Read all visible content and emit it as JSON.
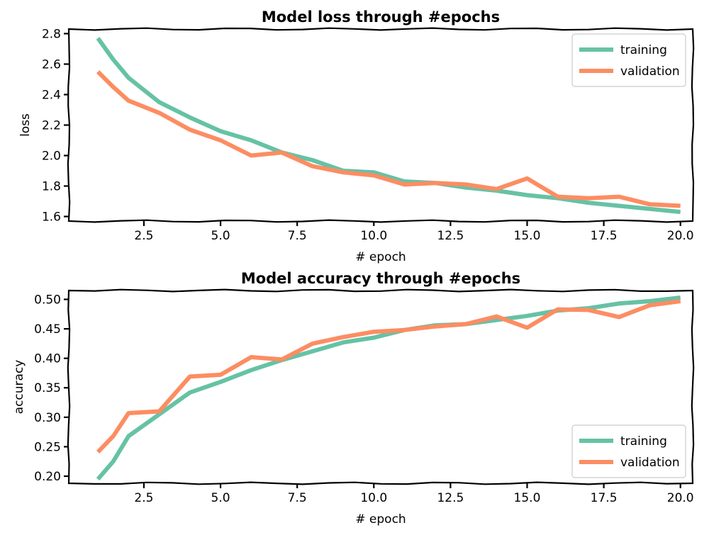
{
  "chart_data": [
    {
      "type": "line",
      "title": "Model loss through #epochs",
      "xlabel": "# epoch",
      "ylabel": "loss",
      "xlim": [
        0.05,
        20.4
      ],
      "ylim": [
        1.57,
        2.83
      ],
      "xticks": [
        2.5,
        5.0,
        7.5,
        10.0,
        12.5,
        15.0,
        17.5,
        20.0
      ],
      "xtick_labels": [
        "2.5",
        "5.0",
        "7.5",
        "10.0",
        "12.5",
        "15.0",
        "17.5",
        "20.0"
      ],
      "yticks": [
        1.6,
        1.8,
        2.0,
        2.2,
        2.4,
        2.6,
        2.8
      ],
      "ytick_labels": [
        "1.6",
        "1.8",
        "2.0",
        "2.2",
        "2.4",
        "2.6",
        "2.8"
      ],
      "grid": false,
      "legend_position": "top-right",
      "x": [
        1,
        1.5,
        2,
        3,
        4,
        5,
        6,
        7,
        8,
        9,
        10,
        11,
        12,
        13,
        14,
        15,
        16,
        17,
        18,
        19,
        20
      ],
      "series": [
        {
          "name": "training",
          "color": "#66c2a5",
          "values": [
            2.77,
            2.63,
            2.51,
            2.35,
            2.25,
            2.16,
            2.1,
            2.02,
            1.97,
            1.9,
            1.89,
            1.83,
            1.82,
            1.79,
            1.77,
            1.74,
            1.72,
            1.69,
            1.67,
            1.65,
            1.63
          ]
        },
        {
          "name": "validation",
          "color": "#fc8d62",
          "values": [
            2.55,
            2.45,
            2.36,
            2.28,
            2.17,
            2.1,
            2.0,
            2.02,
            1.93,
            1.89,
            1.87,
            1.81,
            1.82,
            1.81,
            1.78,
            1.85,
            1.73,
            1.72,
            1.73,
            1.68,
            1.67
          ]
        }
      ]
    },
    {
      "type": "line",
      "title": "Model accuracy through #epochs",
      "xlabel": "# epoch",
      "ylabel": "accuracy",
      "xlim": [
        0.05,
        20.4
      ],
      "ylim": [
        0.188,
        0.515
      ],
      "xticks": [
        2.5,
        5.0,
        7.5,
        10.0,
        12.5,
        15.0,
        17.5,
        20.0
      ],
      "xtick_labels": [
        "2.5",
        "5.0",
        "7.5",
        "10.0",
        "12.5",
        "15.0",
        "17.5",
        "20.0"
      ],
      "yticks": [
        0.2,
        0.25,
        0.3,
        0.35,
        0.4,
        0.45,
        0.5
      ],
      "ytick_labels": [
        "0.20",
        "0.25",
        "0.30",
        "0.35",
        "0.40",
        "0.45",
        "0.50"
      ],
      "grid": false,
      "legend_position": "bottom-right",
      "x": [
        1,
        1.5,
        2,
        3,
        4,
        5,
        6,
        7,
        8,
        9,
        10,
        11,
        12,
        13,
        14,
        15,
        16,
        17,
        18,
        19,
        20
      ],
      "series": [
        {
          "name": "training",
          "color": "#66c2a5",
          "values": [
            0.195,
            0.225,
            0.268,
            0.305,
            0.342,
            0.36,
            0.38,
            0.397,
            0.412,
            0.427,
            0.435,
            0.448,
            0.456,
            0.458,
            0.465,
            0.472,
            0.481,
            0.485,
            0.493,
            0.497,
            0.503
          ]
        },
        {
          "name": "validation",
          "color": "#fc8d62",
          "values": [
            0.241,
            0.268,
            0.307,
            0.31,
            0.369,
            0.372,
            0.402,
            0.398,
            0.425,
            0.436,
            0.445,
            0.448,
            0.454,
            0.458,
            0.471,
            0.452,
            0.483,
            0.482,
            0.47,
            0.49,
            0.497
          ]
        }
      ]
    }
  ]
}
